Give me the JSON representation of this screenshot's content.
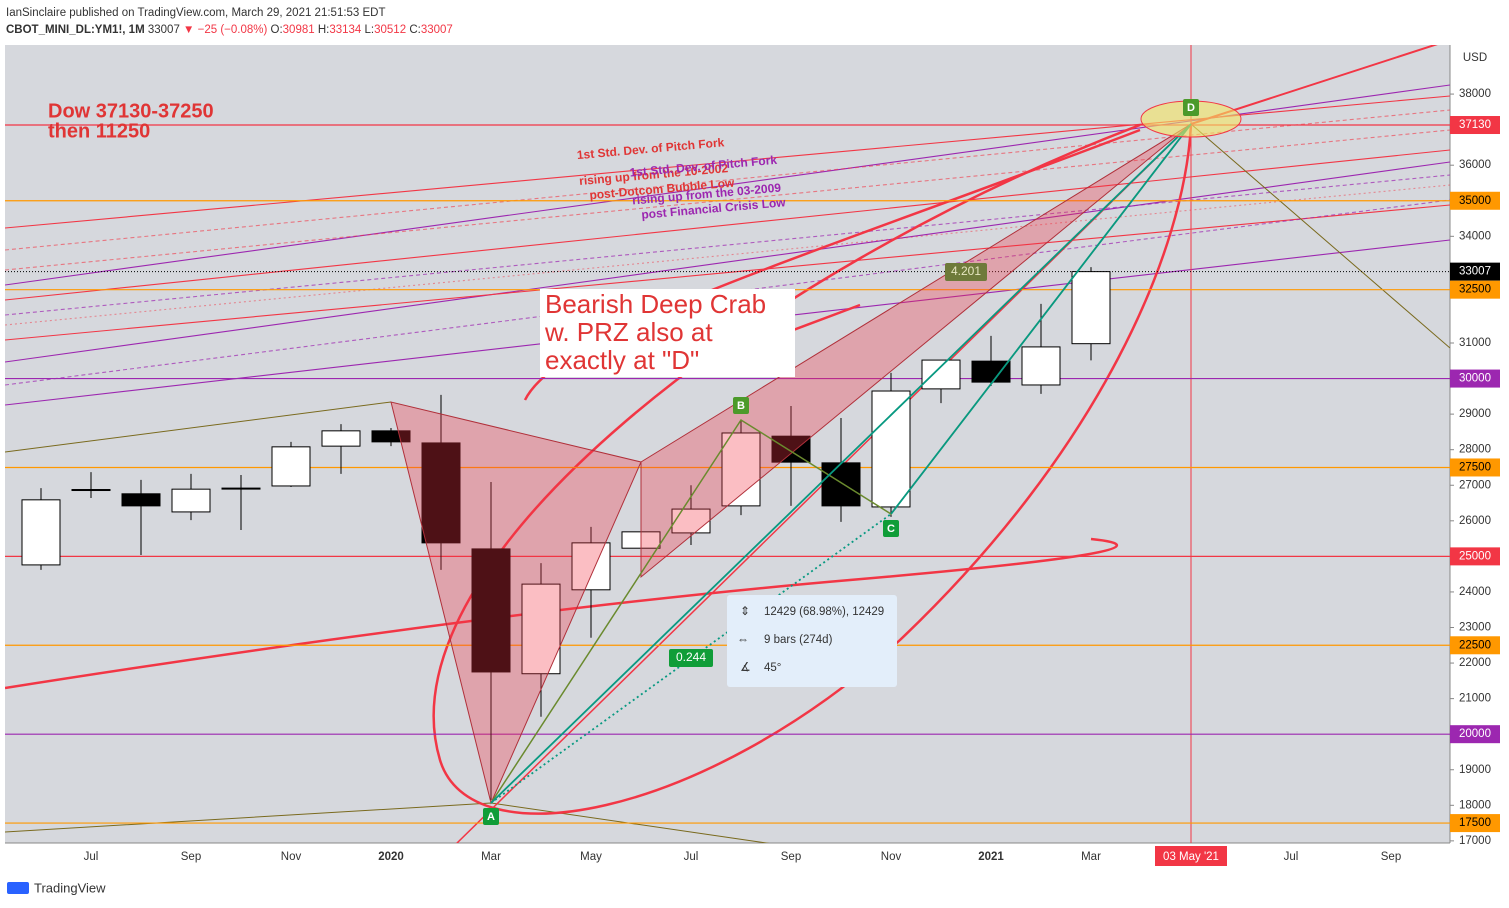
{
  "header": {
    "published": "IanSinclaire published on TradingView.com, March 29, 2021 21:51:53 EDT",
    "symbol": "CBOT_MINI_DL:YM1!, 1M",
    "last": "33007",
    "change": "▼ −25 (−0.08%)",
    "ohlc": [
      {
        "key": "O:",
        "value": "30981"
      },
      {
        "key": "H:",
        "value": "33134"
      },
      {
        "key": "L:",
        "value": "30512"
      },
      {
        "key": "C:",
        "value": "33007"
      }
    ]
  },
  "footer": "TradingView",
  "chart_data": {
    "type": "candlestick",
    "currency": "USD",
    "categories": [
      null,
      "Jul",
      null,
      "Sep",
      null,
      "Nov",
      null,
      "2020",
      null,
      "Mar",
      null,
      "May",
      null,
      "Jul",
      null,
      "Sep",
      null,
      "Nov",
      null,
      "2021",
      null,
      "Mar",
      null,
      "03 May '21",
      null,
      "Jul",
      null,
      "Sep"
    ],
    "crosshair": {
      "category": 23,
      "value": 37130
    },
    "series": {
      "open": [
        24760,
        26860,
        26760,
        26250,
        26900,
        26980,
        28100,
        28530,
        28190,
        25210,
        21700,
        24060,
        25230,
        25660,
        26420,
        28380,
        27630,
        26390,
        29710,
        30490,
        29820,
        30981,
        null,
        null,
        null,
        null,
        null,
        null
      ],
      "high": [
        26920,
        27370,
        27150,
        27320,
        27290,
        28220,
        28720,
        28610,
        29540,
        27090,
        24810,
        25830,
        25710,
        27000,
        28830,
        29230,
        28890,
        30160,
        30520,
        31200,
        32100,
        33134,
        null,
        null,
        null,
        null,
        null,
        null
      ],
      "low": [
        24620,
        26640,
        25040,
        26020,
        25740,
        26950,
        27320,
        28100,
        24620,
        18150,
        20490,
        22710,
        25180,
        25320,
        26160,
        26420,
        25970,
        26110,
        29310,
        29790,
        29570,
        30512,
        null,
        null,
        null,
        null,
        null,
        null
      ],
      "close": [
        26590,
        26880,
        26420,
        26890,
        26920,
        28080,
        28530,
        28220,
        25380,
        21750,
        24220,
        25380,
        25690,
        26330,
        28470,
        27650,
        26420,
        29650,
        30520,
        29900,
        30890,
        33007,
        null,
        null,
        null,
        null,
        null,
        null
      ]
    },
    "up_color": "#ffffff",
    "down_color": "#000000",
    "ylim": [
      16940,
      39380
    ],
    "yticks": [
      17000,
      18000,
      19000,
      21000,
      22000,
      23000,
      24000,
      26000,
      27000,
      28000,
      29000,
      31000,
      34000,
      36000,
      38000
    ],
    "price_lines": [
      {
        "value": 37130,
        "color": "#f23645",
        "style": "solid"
      },
      {
        "value": 35000,
        "color": "#ff9800",
        "style": "solid"
      },
      {
        "value": 33007,
        "color": "#000000",
        "style": "dotted"
      },
      {
        "value": 32500,
        "color": "#ff9800",
        "style": "solid"
      },
      {
        "value": 30000,
        "color": "#9c27b0",
        "style": "solid"
      },
      {
        "value": 27500,
        "color": "#ff9800",
        "style": "solid"
      },
      {
        "value": 25000,
        "color": "#f23645",
        "style": "solid"
      },
      {
        "value": 22500,
        "color": "#ff9800",
        "style": "solid"
      },
      {
        "value": 20000,
        "color": "#9c27b0",
        "style": "solid"
      },
      {
        "value": 17500,
        "color": "#ff9800",
        "style": "solid"
      }
    ],
    "annotations": [
      "Dow 37130-37250",
      "then 11250",
      "1st Std. Dev. of Pitch Fork",
      "rising up from the 10-2002",
      "post-Dotcom Bubble Low",
      "1st Std. Dev. of Pitch Fork",
      "rising up from the 03-2009",
      "post Financial Crisis Low",
      "Bearish Deep Crab",
      "w. PRZ also at",
      "exactly at \"D\"",
      "4.201",
      "0.244",
      "12429 (68.98%), 12429",
      "9 bars (274d)",
      "45°",
      "A",
      "B",
      "C",
      "D"
    ]
  }
}
